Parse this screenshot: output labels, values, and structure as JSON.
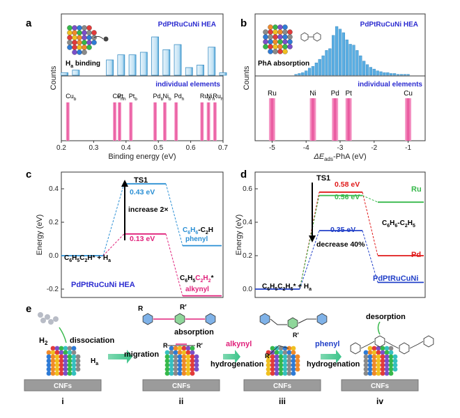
{
  "panels": {
    "a": {
      "label": "a",
      "title": "PdPtRuCuNi HEA",
      "inset_label": "H",
      "inset_label_sub": "a",
      "inset_label_rest": " binding",
      "subtitle": "individual elements",
      "ylabel": "Counts",
      "xlabel": "Binding energy (eV)",
      "xticks": [
        "0.2",
        "0.3",
        "0.4",
        "0.5",
        "0.6",
        "0.7"
      ],
      "element_labels": [
        {
          "name": "Cu",
          "sub": "b",
          "x": 0.22
        },
        {
          "name": "Cu",
          "sub": "h",
          "x": 0.365
        },
        {
          "name": "Pt",
          "sub": "h",
          "x": 0.38
        },
        {
          "name": "Pt",
          "sub": "b",
          "x": 0.415
        },
        {
          "name": "Pd",
          "sub": "b",
          "x": 0.49
        },
        {
          "name": "Ni",
          "sub": "b",
          "x": 0.52
        },
        {
          "name": "Pd",
          "sub": "h",
          "x": 0.555
        },
        {
          "name": "Ru",
          "sub": "b",
          "x": 0.635
        },
        {
          "name": "Ni",
          "sub": "h",
          "x": 0.655
        },
        {
          "name": "Ru",
          "sub": "h",
          "x": 0.675
        }
      ]
    },
    "b": {
      "label": "b",
      "title": "PdPtRuCuNi HEA",
      "inset_label": "PhA absorption",
      "subtitle": "individual elements",
      "ylabel": "Counts",
      "xlabel_pre": "ΔE",
      "xlabel_sub": "ads",
      "xlabel_post": "-PhA (eV)",
      "xticks": [
        "-5",
        "-4",
        "-3",
        "-2",
        "-1"
      ],
      "element_labels": [
        {
          "name": "Ru",
          "x": -5.0
        },
        {
          "name": "Ni",
          "x": -3.8
        },
        {
          "name": "Pd",
          "x": -3.15
        },
        {
          "name": "Pt",
          "x": -2.75
        },
        {
          "name": "Cu",
          "x": -1.0
        }
      ]
    },
    "c": {
      "label": "c",
      "ylabel": "Energy (eV)",
      "yticks": [
        "0.4",
        "0.2",
        "0.0",
        "-0.2"
      ],
      "ts_label": "TS1",
      "hea_barrier": "0.43 eV",
      "elem_barrier": "0.13 eV",
      "arrow_text": "increase 2×",
      "reactant": "C",
      "product_label": "C6H6-C2H",
      "phenyl": "phenyl",
      "alkynyl": "alkynyl",
      "hea": "PdPtRuCuNi HEA"
    },
    "d": {
      "label": "d",
      "ylabel": "Energy (eV)",
      "yticks": [
        "0.6",
        "0.4",
        "0.2",
        "0.0"
      ],
      "ts_label": "TS1",
      "pd_barrier": "0.58 eV",
      "ru_barrier": "0.56 eV",
      "hea_barrier": "0.35 eV",
      "arrow_text": "decrease 40%",
      "ru": "Ru",
      "pd": "Pd",
      "hea": "PdPtRuCuNi"
    },
    "e": {
      "label": "e",
      "h2": "H",
      "dissociation": "dissociation",
      "ha": "H",
      "absorption": "absorption",
      "migration": "migration",
      "r": "R",
      "r_prime": "R′",
      "alkynyl": "alkynyl",
      "hydrogenation1": "hydrogenation",
      "phenyl": "phenyl",
      "hydrogenation2": "hydrogenation",
      "desorption": "desorption",
      "support": "CNFs",
      "steps": [
        "i",
        "ii",
        "iii",
        "iv"
      ]
    }
  },
  "chart_data": [
    {
      "type": "bar",
      "panel": "a",
      "title": "PdPtRuCuNi HEA",
      "xlabel": "Binding energy (eV)",
      "ylabel": "Counts",
      "xlim": [
        0.2,
        0.7
      ],
      "hea_histogram": {
        "x": [
          0.21,
          0.245,
          0.28,
          0.315,
          0.35,
          0.385,
          0.42,
          0.455,
          0.49,
          0.525,
          0.56,
          0.595,
          0.63,
          0.665,
          0.7
        ],
        "values": [
          1,
          2,
          0,
          0,
          6,
          8,
          8,
          9,
          15,
          10,
          12,
          3,
          4,
          11,
          1
        ]
      },
      "element_lines": [
        0.22,
        0.365,
        0.38,
        0.415,
        0.49,
        0.52,
        0.555,
        0.635,
        0.655,
        0.675
      ]
    },
    {
      "type": "bar",
      "panel": "b",
      "title": "PdPtRuCuNi HEA",
      "xlabel": "ΔEads-PhA (eV)",
      "ylabel": "Counts",
      "xlim": [
        -5.5,
        -0.5
      ],
      "hea_histogram": {
        "x": [
          -4.3,
          -4.2,
          -4.1,
          -4.0,
          -3.9,
          -3.8,
          -3.7,
          -3.6,
          -3.5,
          -3.4,
          -3.3,
          -3.2,
          -3.1,
          -3.0,
          -2.9,
          -2.8,
          -2.7,
          -2.6,
          -2.5,
          -2.4,
          -2.3,
          -2.2,
          -2.1,
          -2.0,
          -1.9,
          -1.8,
          -1.7,
          -1.6,
          -1.5,
          -1.4,
          -1.3,
          -1.2,
          -1.1,
          -1.0
        ],
        "values": [
          1,
          2,
          3,
          5,
          8,
          10,
          14,
          18,
          22,
          28,
          30,
          45,
          55,
          52,
          48,
          40,
          35,
          34,
          28,
          22,
          16,
          12,
          9,
          7,
          5,
          4,
          3,
          3,
          2,
          2,
          1,
          1,
          1,
          1
        ]
      },
      "element_lines": [
        -5.0,
        -3.8,
        -3.15,
        -2.75,
        -1.0
      ]
    },
    {
      "type": "line",
      "panel": "c",
      "ylabel": "Energy (eV)",
      "ylim": [
        -0.25,
        0.5
      ],
      "series": [
        {
          "name": "PdPtRuCuNi HEA phenyl",
          "levels": [
            0.0,
            0.43,
            0.06
          ],
          "barrier": "0.43 eV"
        },
        {
          "name": "alkynyl",
          "levels": [
            0.0,
            0.13,
            -0.24
          ],
          "barrier": "0.13 eV"
        }
      ]
    },
    {
      "type": "line",
      "panel": "d",
      "ylabel": "Energy (eV)",
      "ylim": [
        -0.05,
        0.7
      ],
      "series": [
        {
          "name": "Pd",
          "levels": [
            0.0,
            0.58,
            0.2
          ],
          "barrier": "0.58 eV"
        },
        {
          "name": "Ru",
          "levels": [
            0.0,
            0.56,
            0.52
          ],
          "barrier": "0.56 eV"
        },
        {
          "name": "PdPtRuCuNi",
          "levels": [
            0.0,
            0.35,
            0.04
          ],
          "barrier": "0.35 eV"
        }
      ]
    }
  ]
}
